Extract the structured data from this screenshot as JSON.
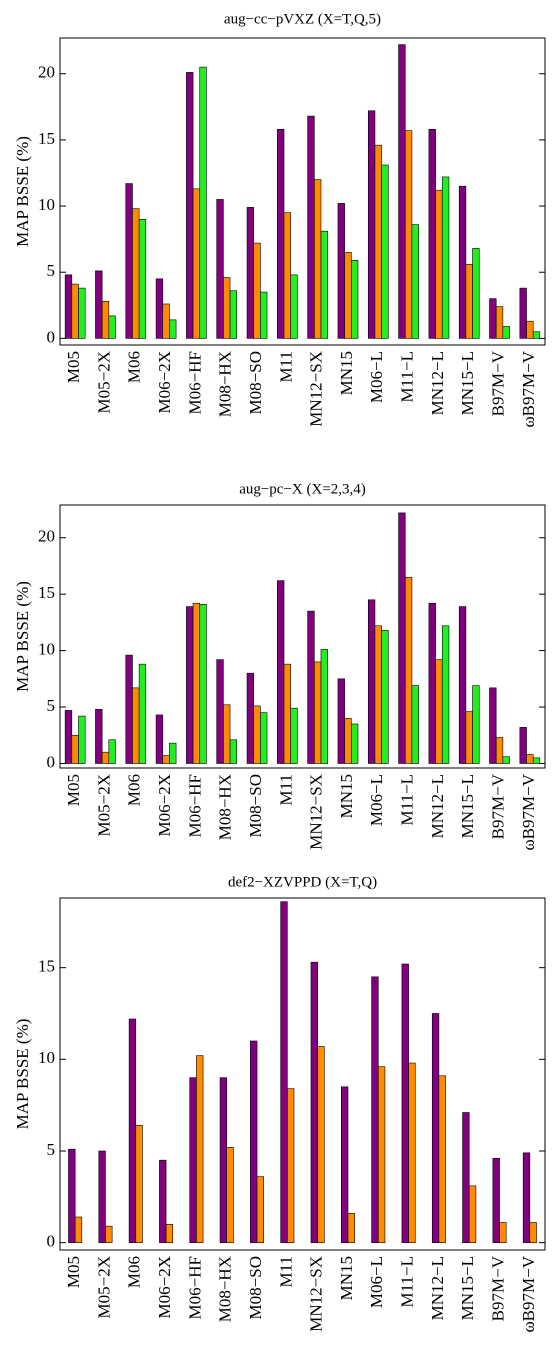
{
  "chart_data": [
    {
      "type": "bar",
      "title": "aug−cc−pVXZ (X=T,Q,5)",
      "y_label": "MAP BSSE (%)",
      "categories": [
        "M05",
        "M05−2X",
        "M06",
        "M06−2X",
        "M06−HF",
        "M08−HX",
        "M08−SO",
        "M11",
        "MN12−SX",
        "MN15",
        "M06−L",
        "M11−L",
        "MN12−L",
        "MN15−L",
        "B97M−V",
        "ωB97M−V"
      ],
      "series": [
        {
          "color": "#800080",
          "values": [
            4.8,
            5.1,
            11.7,
            4.5,
            20.1,
            10.5,
            9.9,
            15.8,
            16.8,
            10.2,
            17.2,
            22.2,
            15.8,
            11.5,
            3.0,
            3.8
          ]
        },
        {
          "color": "#ff8c00",
          "values": [
            4.1,
            2.8,
            9.8,
            2.6,
            11.3,
            4.6,
            7.2,
            9.5,
            12.0,
            6.5,
            14.6,
            15.7,
            11.2,
            5.6,
            2.4,
            1.3
          ]
        },
        {
          "color": "#22ee22",
          "values": [
            3.8,
            1.7,
            9.0,
            1.4,
            20.5,
            3.6,
            3.5,
            4.8,
            8.1,
            5.9,
            13.1,
            8.6,
            12.2,
            6.8,
            0.9,
            0.5
          ]
        }
      ],
      "ylim": [
        -0.5,
        22.7
      ],
      "yticks": [
        0,
        5,
        10,
        15,
        20
      ]
    },
    {
      "type": "bar",
      "title": "aug−pc−X (X=2,3,4)",
      "y_label": "MAP BSSE (%)",
      "categories": [
        "M05",
        "M05−2X",
        "M06",
        "M06−2X",
        "M06−HF",
        "M08−HX",
        "M08−SO",
        "M11",
        "MN12−SX",
        "MN15",
        "M06−L",
        "M11−L",
        "MN12−L",
        "MN15−L",
        "B97M−V",
        "ωB97M−V"
      ],
      "series": [
        {
          "color": "#800080",
          "values": [
            4.7,
            4.8,
            9.6,
            4.3,
            13.9,
            9.2,
            8.0,
            16.2,
            13.5,
            7.5,
            14.5,
            22.2,
            14.2,
            13.9,
            6.7,
            3.2
          ]
        },
        {
          "color": "#ff8c00",
          "values": [
            2.5,
            1.0,
            6.7,
            0.7,
            14.2,
            5.2,
            5.1,
            8.8,
            9.0,
            4.0,
            12.2,
            16.5,
            9.2,
            4.6,
            2.3,
            0.8
          ]
        },
        {
          "color": "#22ee22",
          "values": [
            4.2,
            2.1,
            8.8,
            1.8,
            14.1,
            2.1,
            4.5,
            4.9,
            10.1,
            3.5,
            11.8,
            6.9,
            12.2,
            6.9,
            0.6,
            0.5
          ]
        }
      ],
      "ylim": [
        -0.4,
        22.9
      ],
      "yticks": [
        0,
        5,
        10,
        15,
        20
      ]
    },
    {
      "type": "bar",
      "title": "def2−XZVPPD (X=T,Q)",
      "y_label": "MAP BSSE (%)",
      "categories": [
        "M05",
        "M05−2X",
        "M06",
        "M06−2X",
        "M06−HF",
        "M08−HX",
        "M08−SO",
        "M11",
        "MN12−SX",
        "MN15",
        "M06−L",
        "M11−L",
        "MN12−L",
        "MN15−L",
        "B97M−V",
        "ωB97M−V"
      ],
      "series": [
        {
          "color": "#800080",
          "values": [
            5.1,
            5.0,
            12.2,
            4.5,
            9.0,
            9.0,
            11.0,
            18.6,
            15.3,
            8.5,
            14.5,
            15.2,
            12.5,
            7.1,
            4.6,
            4.9
          ]
        },
        {
          "color": "#ff8c00",
          "values": [
            1.4,
            0.9,
            6.4,
            1.0,
            10.2,
            5.2,
            3.6,
            8.4,
            10.7,
            1.6,
            9.6,
            9.8,
            9.1,
            3.1,
            1.1,
            1.1
          ]
        }
      ],
      "ylim": [
        -0.4,
        18.8
      ],
      "yticks": [
        0,
        5,
        10,
        15
      ]
    }
  ]
}
